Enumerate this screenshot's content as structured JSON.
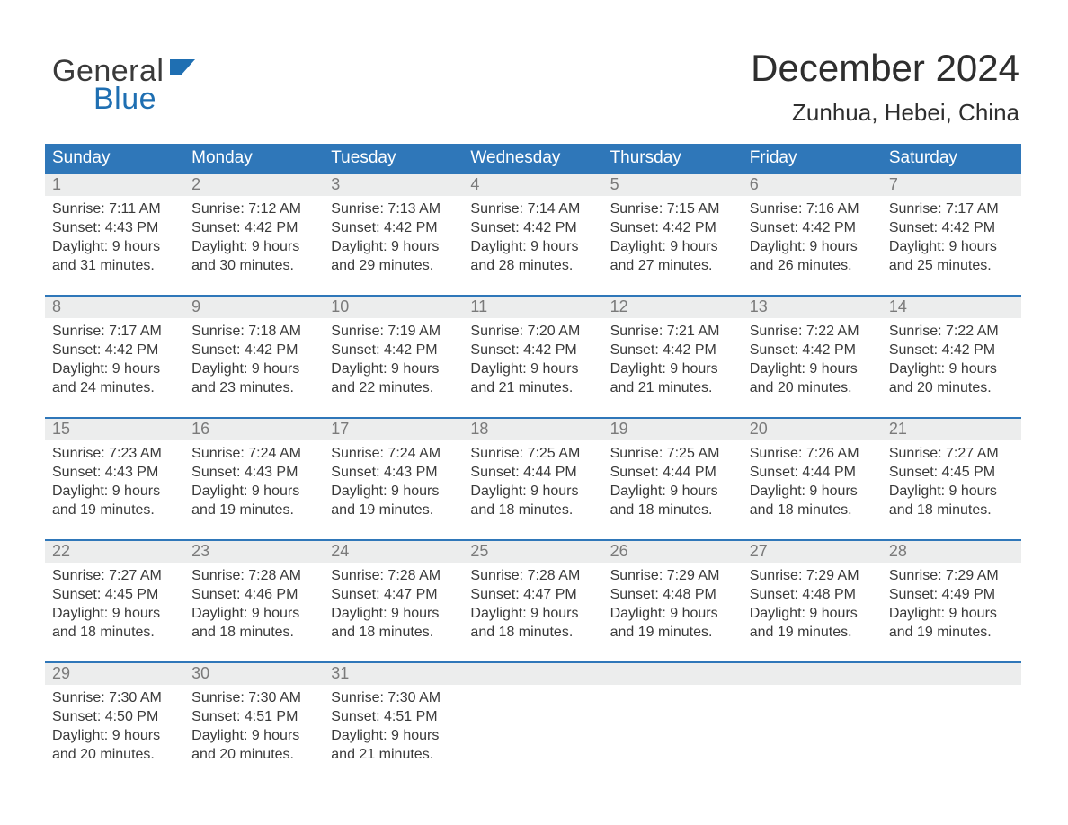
{
  "logo": {
    "word1": "General",
    "word2": "Blue",
    "flag_color": "#1f6fb2"
  },
  "header": {
    "month_title": "December 2024",
    "location": "Zunhua, Hebei, China"
  },
  "colors": {
    "header_bg": "#2f77b9",
    "header_text": "#ffffff",
    "daynum_bg": "#eceded",
    "daynum_border": "#2f77b9",
    "daynum_text": "#7a7a7a",
    "body_text": "#3a3a3a",
    "page_bg": "#ffffff"
  },
  "typography": {
    "month_title_fontsize": 42,
    "location_fontsize": 26,
    "dayheader_fontsize": 19,
    "daynum_fontsize": 18,
    "body_fontsize": 16
  },
  "day_headers": [
    "Sunday",
    "Monday",
    "Tuesday",
    "Wednesday",
    "Thursday",
    "Friday",
    "Saturday"
  ],
  "labels": {
    "sunrise": "Sunrise:",
    "sunset": "Sunset:",
    "daylight": "Daylight:"
  },
  "weeks": [
    [
      {
        "num": "1",
        "sunrise": "7:11 AM",
        "sunset": "4:43 PM",
        "daylight_l1": "9 hours",
        "daylight_l2": "and 31 minutes."
      },
      {
        "num": "2",
        "sunrise": "7:12 AM",
        "sunset": "4:42 PM",
        "daylight_l1": "9 hours",
        "daylight_l2": "and 30 minutes."
      },
      {
        "num": "3",
        "sunrise": "7:13 AM",
        "sunset": "4:42 PM",
        "daylight_l1": "9 hours",
        "daylight_l2": "and 29 minutes."
      },
      {
        "num": "4",
        "sunrise": "7:14 AM",
        "sunset": "4:42 PM",
        "daylight_l1": "9 hours",
        "daylight_l2": "and 28 minutes."
      },
      {
        "num": "5",
        "sunrise": "7:15 AM",
        "sunset": "4:42 PM",
        "daylight_l1": "9 hours",
        "daylight_l2": "and 27 minutes."
      },
      {
        "num": "6",
        "sunrise": "7:16 AM",
        "sunset": "4:42 PM",
        "daylight_l1": "9 hours",
        "daylight_l2": "and 26 minutes."
      },
      {
        "num": "7",
        "sunrise": "7:17 AM",
        "sunset": "4:42 PM",
        "daylight_l1": "9 hours",
        "daylight_l2": "and 25 minutes."
      }
    ],
    [
      {
        "num": "8",
        "sunrise": "7:17 AM",
        "sunset": "4:42 PM",
        "daylight_l1": "9 hours",
        "daylight_l2": "and 24 minutes."
      },
      {
        "num": "9",
        "sunrise": "7:18 AM",
        "sunset": "4:42 PM",
        "daylight_l1": "9 hours",
        "daylight_l2": "and 23 minutes."
      },
      {
        "num": "10",
        "sunrise": "7:19 AM",
        "sunset": "4:42 PM",
        "daylight_l1": "9 hours",
        "daylight_l2": "and 22 minutes."
      },
      {
        "num": "11",
        "sunrise": "7:20 AM",
        "sunset": "4:42 PM",
        "daylight_l1": "9 hours",
        "daylight_l2": "and 21 minutes."
      },
      {
        "num": "12",
        "sunrise": "7:21 AM",
        "sunset": "4:42 PM",
        "daylight_l1": "9 hours",
        "daylight_l2": "and 21 minutes."
      },
      {
        "num": "13",
        "sunrise": "7:22 AM",
        "sunset": "4:42 PM",
        "daylight_l1": "9 hours",
        "daylight_l2": "and 20 minutes."
      },
      {
        "num": "14",
        "sunrise": "7:22 AM",
        "sunset": "4:42 PM",
        "daylight_l1": "9 hours",
        "daylight_l2": "and 20 minutes."
      }
    ],
    [
      {
        "num": "15",
        "sunrise": "7:23 AM",
        "sunset": "4:43 PM",
        "daylight_l1": "9 hours",
        "daylight_l2": "and 19 minutes."
      },
      {
        "num": "16",
        "sunrise": "7:24 AM",
        "sunset": "4:43 PM",
        "daylight_l1": "9 hours",
        "daylight_l2": "and 19 minutes."
      },
      {
        "num": "17",
        "sunrise": "7:24 AM",
        "sunset": "4:43 PM",
        "daylight_l1": "9 hours",
        "daylight_l2": "and 19 minutes."
      },
      {
        "num": "18",
        "sunrise": "7:25 AM",
        "sunset": "4:44 PM",
        "daylight_l1": "9 hours",
        "daylight_l2": "and 18 minutes."
      },
      {
        "num": "19",
        "sunrise": "7:25 AM",
        "sunset": "4:44 PM",
        "daylight_l1": "9 hours",
        "daylight_l2": "and 18 minutes."
      },
      {
        "num": "20",
        "sunrise": "7:26 AM",
        "sunset": "4:44 PM",
        "daylight_l1": "9 hours",
        "daylight_l2": "and 18 minutes."
      },
      {
        "num": "21",
        "sunrise": "7:27 AM",
        "sunset": "4:45 PM",
        "daylight_l1": "9 hours",
        "daylight_l2": "and 18 minutes."
      }
    ],
    [
      {
        "num": "22",
        "sunrise": "7:27 AM",
        "sunset": "4:45 PM",
        "daylight_l1": "9 hours",
        "daylight_l2": "and 18 minutes."
      },
      {
        "num": "23",
        "sunrise": "7:28 AM",
        "sunset": "4:46 PM",
        "daylight_l1": "9 hours",
        "daylight_l2": "and 18 minutes."
      },
      {
        "num": "24",
        "sunrise": "7:28 AM",
        "sunset": "4:47 PM",
        "daylight_l1": "9 hours",
        "daylight_l2": "and 18 minutes."
      },
      {
        "num": "25",
        "sunrise": "7:28 AM",
        "sunset": "4:47 PM",
        "daylight_l1": "9 hours",
        "daylight_l2": "and 18 minutes."
      },
      {
        "num": "26",
        "sunrise": "7:29 AM",
        "sunset": "4:48 PM",
        "daylight_l1": "9 hours",
        "daylight_l2": "and 19 minutes."
      },
      {
        "num": "27",
        "sunrise": "7:29 AM",
        "sunset": "4:48 PM",
        "daylight_l1": "9 hours",
        "daylight_l2": "and 19 minutes."
      },
      {
        "num": "28",
        "sunrise": "7:29 AM",
        "sunset": "4:49 PM",
        "daylight_l1": "9 hours",
        "daylight_l2": "and 19 minutes."
      }
    ],
    [
      {
        "num": "29",
        "sunrise": "7:30 AM",
        "sunset": "4:50 PM",
        "daylight_l1": "9 hours",
        "daylight_l2": "and 20 minutes."
      },
      {
        "num": "30",
        "sunrise": "7:30 AM",
        "sunset": "4:51 PM",
        "daylight_l1": "9 hours",
        "daylight_l2": "and 20 minutes."
      },
      {
        "num": "31",
        "sunrise": "7:30 AM",
        "sunset": "4:51 PM",
        "daylight_l1": "9 hours",
        "daylight_l2": "and 21 minutes."
      },
      null,
      null,
      null,
      null
    ]
  ]
}
